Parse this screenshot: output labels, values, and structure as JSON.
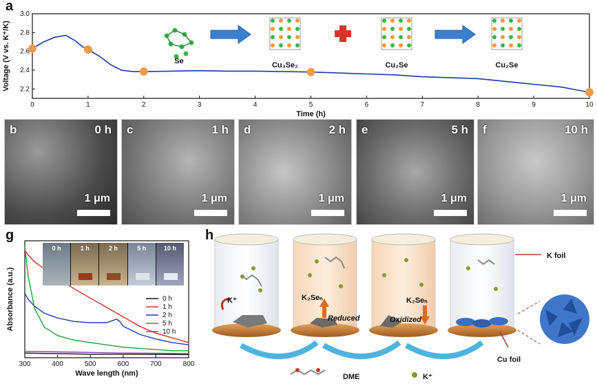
{
  "panel_labels": [
    "a",
    "b",
    "c",
    "d",
    "e",
    "f",
    "g",
    "h"
  ],
  "panel_a": {
    "phases": [
      "Se",
      "Cu3Se2",
      "Cu2Se",
      "Cu2Se"
    ],
    "chart_data": {
      "type": "line",
      "xlabel": "Time (h)",
      "ylabel": "Voltage (V vs. K⁺/K)",
      "xlim": [
        0,
        10
      ],
      "ylim": [
        2.1,
        3.0
      ],
      "x_ticks": [
        "0",
        "1",
        "2",
        "3",
        "4",
        "5",
        "6",
        "7",
        "8",
        "9",
        "10"
      ],
      "y_ticks": [
        "2.2",
        "2.4",
        "2.6",
        "2.8",
        "3.0"
      ],
      "series": [
        {
          "x": [
            0,
            0.2,
            0.4,
            0.6,
            0.75,
            0.9,
            1.0,
            1.2,
            1.4,
            1.6,
            1.8,
            2.0,
            2.5,
            3,
            3.5,
            4,
            4.5,
            5,
            5.5,
            6,
            6.5,
            7,
            7.5,
            8,
            8.5,
            9,
            9.5,
            10
          ],
          "y": [
            2.63,
            2.7,
            2.75,
            2.77,
            2.72,
            2.65,
            2.62,
            2.55,
            2.46,
            2.4,
            2.385,
            2.385,
            2.39,
            2.395,
            2.39,
            2.39,
            2.385,
            2.38,
            2.37,
            2.36,
            2.35,
            2.33,
            2.32,
            2.31,
            2.28,
            2.25,
            2.22,
            2.165
          ]
        }
      ],
      "markers": [
        {
          "x": 0,
          "y": 2.63
        },
        {
          "x": 1,
          "y": 2.62
        },
        {
          "x": 2,
          "y": 2.385
        },
        {
          "x": 5,
          "y": 2.38
        },
        {
          "x": 10,
          "y": 2.165
        }
      ],
      "line_color": "#1a3aa8",
      "marker_color": "#f59a45",
      "grid": false
    }
  },
  "sem_panels": [
    {
      "letter": "b",
      "time": "0 h",
      "scale": "1 μm"
    },
    {
      "letter": "c",
      "time": "1 h",
      "scale": "1 μm"
    },
    {
      "letter": "d",
      "time": "2 h",
      "scale": "1 μm"
    },
    {
      "letter": "e",
      "time": "5 h",
      "scale": "1 μm"
    },
    {
      "letter": "f",
      "time": "10 h",
      "scale": "1 μm"
    }
  ],
  "panel_g": {
    "vial_labels": [
      "0 h",
      "1 h",
      "2 h",
      "5 h",
      "10 h"
    ],
    "chart_data": {
      "type": "line",
      "xlabel": "Wave length (nm)",
      "ylabel": "Absorbance (a.u.)",
      "xlim": [
        300,
        800
      ],
      "x_ticks": [
        "300",
        "400",
        "500",
        "600",
        "700",
        "800"
      ],
      "series": [
        {
          "name": "0 h",
          "color": "#111111",
          "x": [
            300,
            400,
            500,
            600,
            700,
            800
          ],
          "y": [
            0.04,
            0.035,
            0.03,
            0.03,
            0.028,
            0.027
          ]
        },
        {
          "name": "1 h",
          "color": "#d93025",
          "x": [
            300,
            310,
            330,
            360,
            400,
            450,
            500,
            550,
            600,
            650,
            700,
            750,
            800
          ],
          "y": [
            0.92,
            0.88,
            0.82,
            0.76,
            0.68,
            0.59,
            0.51,
            0.43,
            0.35,
            0.27,
            0.21,
            0.17,
            0.13
          ]
        },
        {
          "name": "2 h",
          "color": "#1a3aa8",
          "x": [
            300,
            310,
            330,
            360,
            400,
            450,
            500,
            550,
            580,
            590,
            600,
            650,
            700,
            750,
            800
          ],
          "y": [
            0.55,
            0.5,
            0.44,
            0.38,
            0.34,
            0.31,
            0.3,
            0.3,
            0.33,
            0.31,
            0.27,
            0.2,
            0.16,
            0.13,
            0.11
          ]
        },
        {
          "name": "5 h",
          "color": "#1e9e3a",
          "x": [
            300,
            310,
            330,
            360,
            400,
            450,
            500,
            550,
            600,
            650,
            700,
            750,
            800
          ],
          "y": [
            0.95,
            0.7,
            0.42,
            0.26,
            0.19,
            0.15,
            0.13,
            0.11,
            0.09,
            0.08,
            0.07,
            0.06,
            0.06
          ]
        },
        {
          "name": "10 h",
          "color": "#8a3fb0",
          "x": [
            300,
            400,
            500,
            600,
            700,
            800
          ],
          "y": [
            0.055,
            0.05,
            0.045,
            0.04,
            0.038,
            0.036
          ]
        }
      ]
    }
  },
  "panel_h": {
    "k_foil": "K foil",
    "cu_foil": "Cu foil",
    "k_ion": "K⁺",
    "k2sen_1": "K₂Seₙ",
    "k2sen_2": "K₂Seₙ",
    "reduced": "Reduced",
    "oxidized": "Oxidized",
    "legend_dme": "DME",
    "legend_k": "K⁺"
  }
}
